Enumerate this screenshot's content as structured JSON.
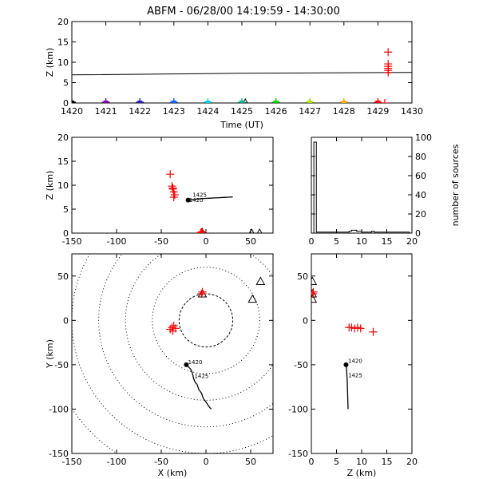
{
  "figure": {
    "title": "ABFM - 06/28/00 14:19:59 - 14:30:00"
  },
  "chart_data": [
    {
      "id": "time_height",
      "type": "scatter",
      "xlabel": "Time (UT)",
      "ylabel": "Z (km)",
      "xlim": [
        1420,
        1430
      ],
      "ylim": [
        0,
        20
      ],
      "xticks": [
        1420,
        1421,
        1422,
        1423,
        1424,
        1425,
        1426,
        1427,
        1428,
        1429,
        1430
      ],
      "yticks": [
        0,
        5,
        10,
        15,
        20
      ],
      "grid": false,
      "markers": [
        {
          "x": 1420.0,
          "y": 0,
          "color": "#000000"
        },
        {
          "x": 1421.0,
          "y": 0,
          "color": "#7a00a8"
        },
        {
          "x": 1422.0,
          "y": 0,
          "color": "#2a1fb0"
        },
        {
          "x": 1423.0,
          "y": 0,
          "color": "#0b62ff"
        },
        {
          "x": 1424.0,
          "y": 0,
          "color": "#00d2e6"
        },
        {
          "x": 1425.0,
          "y": 0,
          "color": "#00b38a"
        },
        {
          "x": 1426.0,
          "y": 0,
          "color": "#00d400"
        },
        {
          "x": 1427.0,
          "y": 0,
          "color": "#a8e000"
        },
        {
          "x": 1428.0,
          "y": 0,
          "color": "#ffb000"
        },
        {
          "x": 1429.0,
          "y": 0,
          "color": "#ff0000"
        }
      ],
      "sources": [
        {
          "x": 1429.3,
          "y": 12.5
        },
        {
          "x": 1429.3,
          "y": 9.6
        },
        {
          "x": 1429.3,
          "y": 9.0
        },
        {
          "x": 1429.3,
          "y": 8.5
        },
        {
          "x": 1429.3,
          "y": 8.0
        },
        {
          "x": 1429.3,
          "y": 7.5
        },
        {
          "x": 1429.2,
          "y": 0
        }
      ],
      "stations": [
        {
          "x": 1425.1,
          "y": 0
        }
      ],
      "line": {
        "x": [
          1420,
          1425,
          1430
        ],
        "y": [
          6.9,
          7.3,
          7.5
        ]
      }
    },
    {
      "id": "xz_view",
      "type": "scatter",
      "ylabel": "Z (km)",
      "xlim": [
        -150,
        75
      ],
      "ylim": [
        0,
        20
      ],
      "xticks": [
        -150,
        -100,
        -50,
        0,
        50
      ],
      "yticks": [
        0,
        5,
        10,
        15,
        20
      ],
      "grid": false,
      "sources": [
        {
          "x": -40,
          "y": 12.3
        },
        {
          "x": -38,
          "y": 9.8
        },
        {
          "x": -37,
          "y": 9.2
        },
        {
          "x": -36,
          "y": 8.6
        },
        {
          "x": -35,
          "y": 8.0
        },
        {
          "x": -36,
          "y": 7.5
        },
        {
          "x": -37,
          "y": 9.4
        },
        {
          "x": -5,
          "y": 0.2
        },
        {
          "x": -4,
          "y": 0.3
        },
        {
          "x": -6,
          "y": 0.1
        }
      ],
      "stations": [
        {
          "x": -4,
          "y": 0
        },
        {
          "x": 51,
          "y": 0
        },
        {
          "x": 60,
          "y": 0
        }
      ],
      "track": {
        "x": [
          -20,
          -15,
          -10,
          -5,
          0,
          5,
          10,
          15,
          20,
          25,
          30
        ],
        "y": [
          6.9,
          7.0,
          7.1,
          7.2,
          7.25,
          7.3,
          7.35,
          7.4,
          7.45,
          7.5,
          7.55
        ]
      },
      "track_points": [
        {
          "x": -20,
          "y": 6.9
        }
      ],
      "annotations": [
        {
          "text": "1425",
          "x": -15,
          "y": 7.6
        },
        {
          "text": "1420",
          "x": -19,
          "y": 6.5
        }
      ]
    },
    {
      "id": "altitude_histogram",
      "type": "bar",
      "ylabel": "number of sources",
      "xlim": [
        0,
        20
      ],
      "ylim": [
        0,
        100
      ],
      "xticks": [
        0,
        5,
        10,
        15,
        20
      ],
      "yticks": [
        0,
        20,
        40,
        60,
        80,
        100
      ],
      "bin_width": 0.5,
      "bins": [
        0,
        0.5,
        1,
        1.5,
        2,
        2.5,
        3,
        3.5,
        4,
        4.5,
        5,
        5.5,
        6,
        6.5,
        7,
        7.5,
        8,
        8.5,
        9,
        9.5,
        10,
        10.5,
        11,
        11.5,
        12,
        12.5,
        13,
        13.5,
        14,
        14.5,
        15,
        15.5,
        16,
        16.5,
        17,
        17.5,
        18,
        18.5,
        19,
        19.5
      ],
      "values": [
        0,
        95,
        1,
        1,
        1,
        1,
        1,
        1,
        1,
        1,
        1,
        1,
        1,
        1,
        1,
        2,
        3,
        3,
        2,
        2,
        1,
        1,
        1,
        1,
        2,
        1,
        1,
        1,
        1,
        1,
        1,
        1,
        1,
        1,
        1,
        1,
        1,
        1,
        1,
        0
      ]
    },
    {
      "id": "plan_view",
      "type": "scatter",
      "xlabel": "X (km)",
      "ylabel": "Y (km)",
      "xlim": [
        -150,
        75
      ],
      "ylim": [
        -150,
        75
      ],
      "xticks": [
        -150,
        -100,
        -50,
        0,
        50
      ],
      "yticks": [
        -150,
        -100,
        -50,
        0,
        50
      ],
      "grid": false,
      "range_rings_km": [
        30,
        60,
        90,
        120,
        150,
        180
      ],
      "ring_center": [
        0,
        0
      ],
      "sources": [
        {
          "x": -40,
          "y": -10
        },
        {
          "x": -38,
          "y": -8
        },
        {
          "x": -37,
          "y": -12
        },
        {
          "x": -36,
          "y": -6
        },
        {
          "x": -34,
          "y": -9
        },
        {
          "x": -5,
          "y": 30
        },
        {
          "x": -4,
          "y": 32
        }
      ],
      "stations": [
        {
          "x": -4,
          "y": 30
        },
        {
          "x": 52,
          "y": 24
        },
        {
          "x": 61,
          "y": 44
        }
      ],
      "track": {
        "x": [
          -22,
          -20,
          -17,
          -15,
          -14,
          -12,
          -10,
          -8,
          -5,
          -3,
          0,
          2,
          4,
          6
        ],
        "y": [
          -50,
          -52,
          -55,
          -60,
          -65,
          -70,
          -72,
          -78,
          -82,
          -88,
          -92,
          -95,
          -98,
          -100
        ]
      },
      "track_points": [
        {
          "x": -22,
          "y": -50
        }
      ],
      "annotations": [
        {
          "text": "1420",
          "x": -20,
          "y": -49
        },
        {
          "text": "1425",
          "x": -13,
          "y": -65
        }
      ]
    },
    {
      "id": "zy_view",
      "type": "scatter",
      "xlabel": "Z (km)",
      "xlim": [
        0,
        20
      ],
      "ylim": [
        -150,
        75
      ],
      "xticks": [
        0,
        5,
        10,
        15,
        20
      ],
      "yticks": [
        -150,
        -100,
        -50,
        0,
        50
      ],
      "grid": false,
      "sources": [
        {
          "x": 0.3,
          "y": 30
        },
        {
          "x": 0.4,
          "y": 32
        },
        {
          "x": 7.5,
          "y": -8
        },
        {
          "x": 8.0,
          "y": -8
        },
        {
          "x": 8.6,
          "y": -9
        },
        {
          "x": 9.2,
          "y": -8
        },
        {
          "x": 9.8,
          "y": -9
        },
        {
          "x": 12.3,
          "y": -13
        }
      ],
      "stations": [
        {
          "x": 0.2,
          "y": 24
        },
        {
          "x": 0.2,
          "y": 30
        },
        {
          "x": 0.2,
          "y": 44
        }
      ],
      "track": {
        "x": [
          6.9,
          7.0,
          7.1,
          7.15,
          7.2,
          7.25,
          7.3
        ],
        "y": [
          -50,
          -55,
          -65,
          -72,
          -80,
          -90,
          -100
        ]
      },
      "track_points": [
        {
          "x": 6.9,
          "y": -50
        }
      ],
      "annotations": [
        {
          "text": "1420",
          "x": 7.3,
          "y": -48
        },
        {
          "text": "1425",
          "x": 7.3,
          "y": -64
        }
      ]
    }
  ]
}
